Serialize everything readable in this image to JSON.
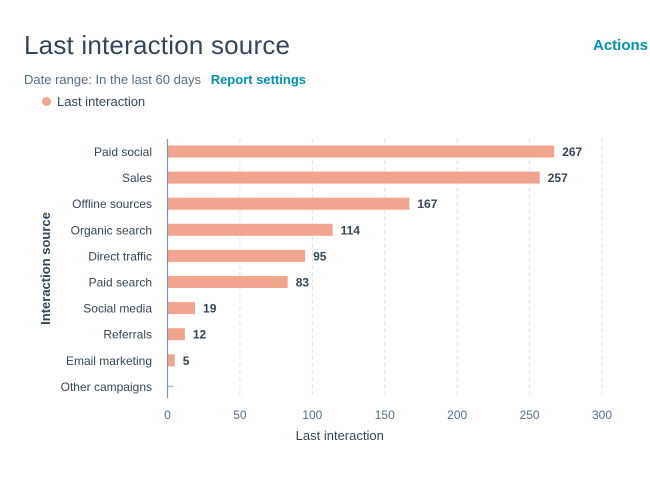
{
  "header": {
    "title": "Last interaction source",
    "actions_label": "Actions",
    "date_range_label": "Date range: In the last 60 days",
    "report_settings_label": "Report settings"
  },
  "colors": {
    "bar": "#f2a58e",
    "link": "#0091ae",
    "text": "#33475b"
  },
  "chart_data": {
    "type": "bar",
    "orientation": "horizontal",
    "title": "Last interaction source",
    "xlabel": "Last interaction",
    "ylabel": "Interaction source",
    "legend": [
      "Last interaction"
    ],
    "legend_position": "top-left",
    "categories": [
      "Paid social",
      "Sales",
      "Offline sources",
      "Organic search",
      "Direct traffic",
      "Paid search",
      "Social media",
      "Referrals",
      "Email marketing",
      "Other campaigns"
    ],
    "series": [
      {
        "name": "Last interaction",
        "values": [
          267,
          257,
          167,
          114,
          95,
          83,
          19,
          12,
          5,
          0
        ]
      }
    ],
    "value_labels": [
      "267",
      "257",
      "167",
      "114",
      "95",
      "83",
      "19",
      "12",
      "5",
      ""
    ],
    "xlim": [
      0,
      300
    ],
    "xticks": [
      0,
      50,
      100,
      150,
      200,
      250,
      300
    ],
    "grid": true
  }
}
